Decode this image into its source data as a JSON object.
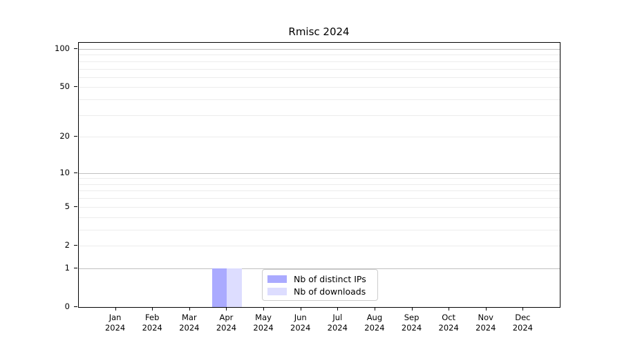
{
  "chart_data": {
    "type": "bar",
    "title": "Rmisc 2024",
    "months": [
      "Jan",
      "Feb",
      "Mar",
      "Apr",
      "May",
      "Jun",
      "Jul",
      "Aug",
      "Sep",
      "Oct",
      "Nov",
      "Dec"
    ],
    "year": "2024",
    "series": [
      {
        "name": "Nb of distinct IPs",
        "color": "#aaaaff",
        "values": [
          0,
          0,
          0,
          1,
          0,
          0,
          0,
          0,
          0,
          0,
          0,
          0
        ]
      },
      {
        "name": "Nb of downloads",
        "color": "#ddddff",
        "values": [
          0,
          0,
          0,
          1,
          0,
          0,
          0,
          0,
          0,
          0,
          0,
          0
        ]
      }
    ],
    "y_axis": {
      "scale": "log1p",
      "tick_values": [
        0,
        1,
        2,
        5,
        10,
        20,
        50,
        100
      ],
      "top_value": 100
    },
    "grid": {
      "minor_values": [
        2,
        3,
        4,
        5,
        6,
        7,
        8,
        9,
        20,
        30,
        40,
        50,
        60,
        70,
        80,
        90
      ],
      "decade_values": [
        1,
        10,
        100
      ],
      "minor_color": "#ececec",
      "decade_color": "#c0c0c0"
    },
    "legend_position": "bottom-center",
    "bar_width_fraction": 0.4,
    "axis_color": "#000000",
    "background_color": "#ffffff"
  }
}
